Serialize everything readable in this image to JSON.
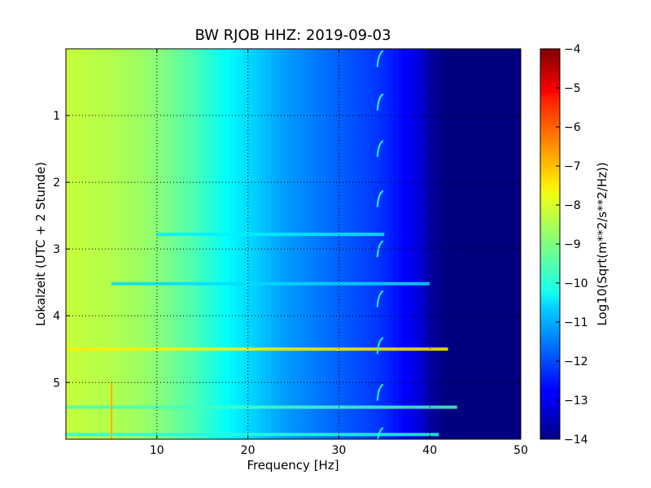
{
  "chart_data": {
    "type": "heatmap",
    "title": "BW RJOB HHZ: 2019-09-03",
    "xlabel": "Frequency [Hz]",
    "ylabel": "Lokalzeit (UTC + 2 Stunde)",
    "xlim": [
      0,
      50
    ],
    "ylim": [
      5.85,
      0
    ],
    "x_ticks": [
      10,
      20,
      30,
      40,
      50
    ],
    "y_ticks": [
      1,
      2,
      3,
      4,
      5
    ],
    "grid": true,
    "colormap": "jet",
    "colorbar": {
      "label": "Log10(Sqrt(m**2/s**2/Hz))",
      "min": -14,
      "max": -4,
      "ticks": [
        -4,
        -5,
        -6,
        -7,
        -8,
        -9,
        -10,
        -11,
        -12,
        -13,
        -14
      ]
    },
    "mean_spectrum": {
      "frequency_hz": [
        0,
        2,
        5,
        8,
        10,
        12,
        14,
        16,
        18,
        20,
        22,
        24,
        26,
        28,
        30,
        32,
        34,
        36,
        38,
        39,
        40,
        41,
        42,
        50
      ],
      "log10_amplitude": [
        -8.3,
        -8.4,
        -8.5,
        -8.7,
        -8.9,
        -9.2,
        -9.5,
        -9.9,
        -10.3,
        -10.6,
        -10.9,
        -11.2,
        -11.4,
        -11.6,
        -11.8,
        -12.0,
        -12.2,
        -12.5,
        -12.9,
        -13.2,
        -13.6,
        -13.9,
        -14.0,
        -14.0
      ]
    },
    "bands": [
      {
        "time_h": 4.5,
        "freq_hz": [
          0,
          42
        ],
        "level": -7.6
      },
      {
        "time_h": 5.37,
        "freq_hz": [
          0,
          43
        ],
        "level": -9.6
      },
      {
        "time_h": 5.78,
        "freq_hz": [
          0,
          41
        ],
        "level": -9.9
      },
      {
        "time_h": 3.52,
        "freq_hz": [
          5,
          40
        ],
        "level": -10.6
      },
      {
        "time_h": 2.78,
        "freq_hz": [
          10,
          35
        ],
        "level": -10.4
      }
    ],
    "tone_line_hz": 5.0,
    "tone_line_time_h": [
      5.0,
      5.85
    ],
    "periodic_feature_hz": 34.5,
    "periodic_feature_times_h": [
      0.15,
      0.8,
      1.5,
      2.25,
      3.0,
      3.75,
      4.45,
      5.15,
      5.8
    ]
  }
}
